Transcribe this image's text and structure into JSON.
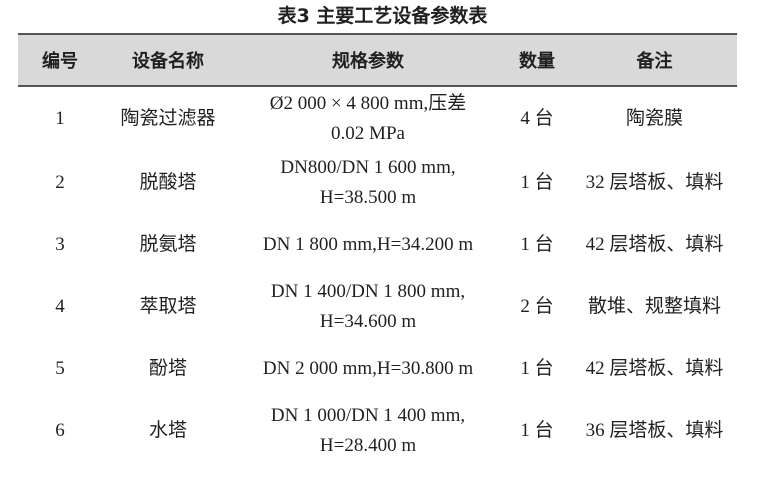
{
  "title": "表3 主要工艺设备参数表",
  "table": {
    "headers": [
      "编号",
      "设备名称",
      "规格参数",
      "数量",
      "备注"
    ],
    "rows": [
      {
        "no": "1",
        "name": "陶瓷过滤器",
        "spec": [
          "Ø2 000 × 4 800 mm,压差",
          "0.02 MPa"
        ],
        "qty": "4 台",
        "note": "陶瓷膜"
      },
      {
        "no": "2",
        "name": "脱酸塔",
        "spec": [
          "DN800/DN 1 600 mm,",
          "H=38.500 m"
        ],
        "qty": "1 台",
        "note": "32 层塔板、填料"
      },
      {
        "no": "3",
        "name": "脱氨塔",
        "spec": [
          "DN 1 800 mm,H=34.200 m"
        ],
        "qty": "1 台",
        "note": "42 层塔板、填料"
      },
      {
        "no": "4",
        "name": "萃取塔",
        "spec": [
          "DN 1 400/DN 1 800 mm,",
          "H=34.600 m"
        ],
        "qty": "2 台",
        "note": "散堆、规整填料"
      },
      {
        "no": "5",
        "name": "酚塔",
        "spec": [
          "DN 2 000 mm,H=30.800 m"
        ],
        "qty": "1 台",
        "note": "42 层塔板、填料"
      },
      {
        "no": "6",
        "name": "水塔",
        "spec": [
          "DN 1 000/DN 1 400 mm,",
          "H=28.400 m"
        ],
        "qty": "1 台",
        "note": "36 层塔板、填料"
      }
    ]
  }
}
